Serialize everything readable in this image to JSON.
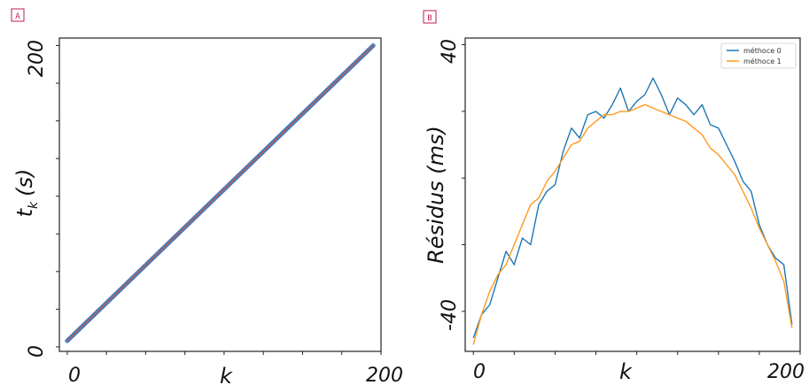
{
  "panels": {
    "a": {
      "badge": "A"
    },
    "b": {
      "badge": "B"
    }
  },
  "colors": {
    "axes": "#222222",
    "series0": "#1f77b4",
    "series1": "#ff9a1f",
    "panelA_points": "#3b78b8",
    "panelA_line": "#d9534f",
    "badge": "#c2185b"
  },
  "chart_data": [
    {
      "type": "line",
      "title": "",
      "xlabel": "k",
      "ylabel": "t_k (s)",
      "ylabel_main": "t",
      "ylabel_sub": "k",
      "ylabel_unit": "(s)",
      "xlim": [
        -5,
        200
      ],
      "ylim": [
        -3,
        205
      ],
      "x_ticks": [
        0,
        200
      ],
      "x_tick_labels": [
        "0",
        "200"
      ],
      "y_ticks": [
        0,
        200
      ],
      "y_tick_labels": [
        "0",
        "200"
      ],
      "x": {
        "start": 0,
        "end": 195,
        "step": 1
      },
      "series": [
        {
          "kind": "scatter",
          "x_start": 0,
          "x_end": 195,
          "y_start": 4,
          "y_end": 200
        },
        {
          "kind": "fit-line",
          "x_start": 0,
          "x_end": 195,
          "y_start": 4,
          "y_end": 200
        }
      ],
      "grid": false,
      "legend": null
    },
    {
      "type": "line",
      "title": "",
      "xlabel": "k",
      "ylabel": "Résidus (ms)",
      "xlim": [
        -5,
        200
      ],
      "ylim": [
        -52,
        42
      ],
      "x_ticks": [
        0,
        200
      ],
      "x_tick_labels": [
        "0",
        "200"
      ],
      "y_ticks": [
        -40,
        40
      ],
      "y_tick_labels": [
        "-40",
        "40"
      ],
      "legend": "top-right",
      "grid": false,
      "series": [
        {
          "name": "méthoce 0",
          "x": [
            0,
            5,
            10,
            15,
            20,
            25,
            30,
            35,
            40,
            45,
            50,
            55,
            60,
            65,
            70,
            75,
            80,
            85,
            90,
            95,
            100,
            105,
            110,
            115,
            120,
            125,
            130,
            135,
            140,
            145,
            150,
            155,
            160,
            165,
            170,
            175,
            180,
            185,
            190,
            195
          ],
          "y": [
            -48,
            -41,
            -38,
            -30,
            -22,
            -26,
            -18,
            -20,
            -8,
            -4,
            -2,
            8,
            15,
            12,
            19,
            20,
            18,
            22,
            27,
            20,
            23,
            25,
            30,
            25,
            19,
            24,
            22,
            19,
            22,
            16,
            15,
            10,
            5,
            -1,
            -4,
            -14,
            -20,
            -24,
            -26,
            -44
          ]
        },
        {
          "name": "méthoce 1",
          "x": [
            0,
            5,
            10,
            15,
            20,
            25,
            30,
            35,
            40,
            45,
            50,
            55,
            60,
            65,
            70,
            75,
            80,
            85,
            90,
            95,
            100,
            105,
            110,
            115,
            120,
            125,
            130,
            135,
            140,
            145,
            150,
            155,
            160,
            165,
            170,
            175,
            180,
            185,
            190,
            195
          ],
          "y": [
            -50,
            -41,
            -34,
            -29,
            -26,
            -20,
            -14,
            -8,
            -6,
            -1,
            2,
            6,
            10,
            11,
            15,
            17,
            19,
            19,
            20,
            20,
            21,
            22,
            21,
            20,
            19,
            18,
            17,
            15,
            13,
            9,
            7,
            4,
            1,
            -4,
            -9,
            -15,
            -20,
            -25,
            -31,
            -45
          ]
        }
      ]
    }
  ]
}
